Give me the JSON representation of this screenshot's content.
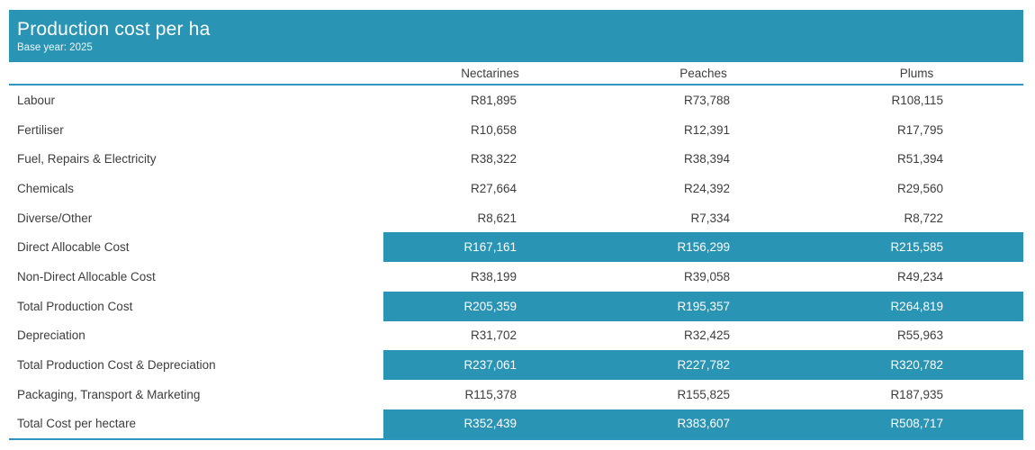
{
  "chart_data": {
    "type": "table",
    "title": "Production cost per ha",
    "subtitle": "Base year: 2025",
    "columns": [
      "Nectarines",
      "Peaches",
      "Plums"
    ],
    "rows": [
      {
        "label": "Labour",
        "values": [
          "R81,895",
          "R73,788",
          "R108,115"
        ],
        "highlight": false
      },
      {
        "label": "Fertiliser",
        "values": [
          "R10,658",
          "R12,391",
          "R17,795"
        ],
        "highlight": false
      },
      {
        "label": "Fuel, Repairs & Electricity",
        "values": [
          "R38,322",
          "R38,394",
          "R51,394"
        ],
        "highlight": false
      },
      {
        "label": "Chemicals",
        "values": [
          "R27,664",
          "R24,392",
          "R29,560"
        ],
        "highlight": false
      },
      {
        "label": "Diverse/Other",
        "values": [
          "R8,621",
          "R7,334",
          "R8,722"
        ],
        "highlight": false
      },
      {
        "label": "Direct Allocable Cost",
        "values": [
          "R167,161",
          "R156,299",
          "R215,585"
        ],
        "highlight": true
      },
      {
        "label": "Non-Direct Allocable Cost",
        "values": [
          "R38,199",
          "R39,058",
          "R49,234"
        ],
        "highlight": false
      },
      {
        "label": "Total Production Cost",
        "values": [
          "R205,359",
          "R195,357",
          "R264,819"
        ],
        "highlight": true
      },
      {
        "label": "Depreciation",
        "values": [
          "R31,702",
          "R32,425",
          "R55,963"
        ],
        "highlight": false
      },
      {
        "label": "Total Production Cost & Depreciation",
        "values": [
          "R237,061",
          "R227,782",
          "R320,782"
        ],
        "highlight": true
      },
      {
        "label": "Packaging, Transport & Marketing",
        "values": [
          "R115,378",
          "R155,825",
          "R187,935"
        ],
        "highlight": false
      },
      {
        "label": "Total Cost per hectare",
        "values": [
          "R352,439",
          "R383,607",
          "R508,717"
        ],
        "highlight": true
      }
    ],
    "layout": {
      "legend": "none",
      "grid": "off",
      "highlight_style": "teal band on value columns"
    }
  },
  "colors": {
    "accent": "#2a94b5",
    "rule": "#2e97bd",
    "text": "#3d3d3d",
    "highlight_text": "#ffffff"
  }
}
